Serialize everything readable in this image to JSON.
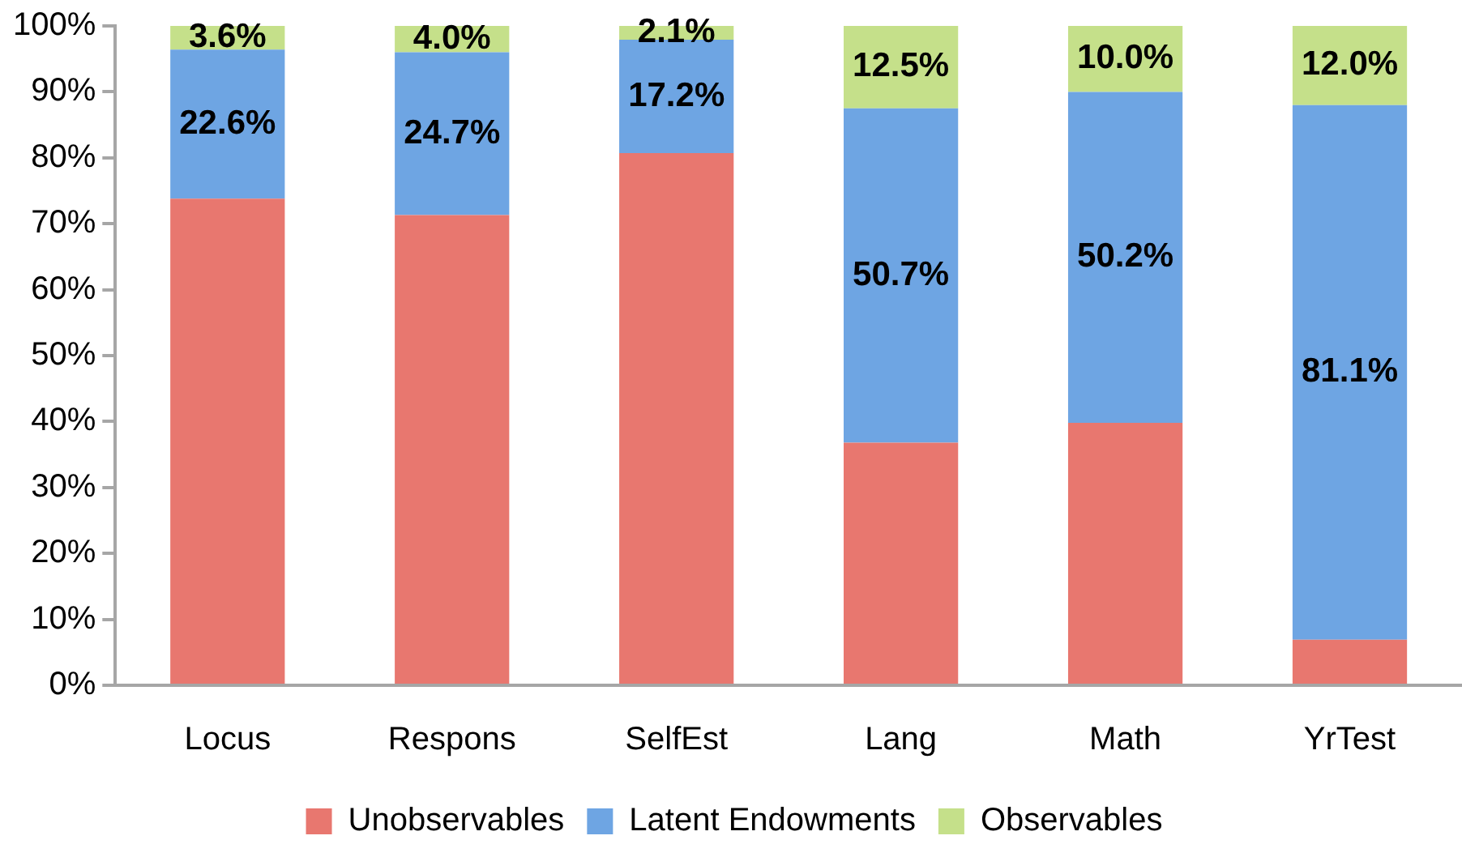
{
  "chart_data": {
    "type": "bar",
    "stacked": true,
    "categories": [
      "Locus",
      "Respons",
      "SelfEst",
      "Lang",
      "Math",
      "YrTest"
    ],
    "series": [
      {
        "name": "Unobservables",
        "color": "#e8776f",
        "values": [
          73.8,
          71.3,
          80.7,
          36.8,
          39.8,
          6.9
        ]
      },
      {
        "name": "Latent Endowments",
        "color": "#6ea5e3",
        "values": [
          22.6,
          24.7,
          17.2,
          50.7,
          50.2,
          81.1
        ],
        "value_labels": [
          "22.6%",
          "24.7%",
          "17.2%",
          "50.7%",
          "50.2%",
          "81.1%"
        ]
      },
      {
        "name": "Observables",
        "color": "#c5e08a",
        "values": [
          3.6,
          4.0,
          2.1,
          12.5,
          10.0,
          12.0
        ],
        "value_labels": [
          "3.6%",
          "4.0%",
          "2.1%",
          "12.5%",
          "10.0%",
          "12.0%"
        ]
      }
    ],
    "ylim": [
      0,
      100
    ],
    "yticks": [
      {
        "value": 0,
        "label": "0%"
      },
      {
        "value": 10,
        "label": "10%"
      },
      {
        "value": 20,
        "label": "20%"
      },
      {
        "value": 30,
        "label": "30%"
      },
      {
        "value": 40,
        "label": "40%"
      },
      {
        "value": 50,
        "label": "50%"
      },
      {
        "value": 60,
        "label": "60%"
      },
      {
        "value": 70,
        "label": "70%"
      },
      {
        "value": 80,
        "label": "80%"
      },
      {
        "value": 90,
        "label": "90%"
      },
      {
        "value": 100,
        "label": "100%"
      }
    ],
    "grid": false,
    "legend": "bottom"
  }
}
